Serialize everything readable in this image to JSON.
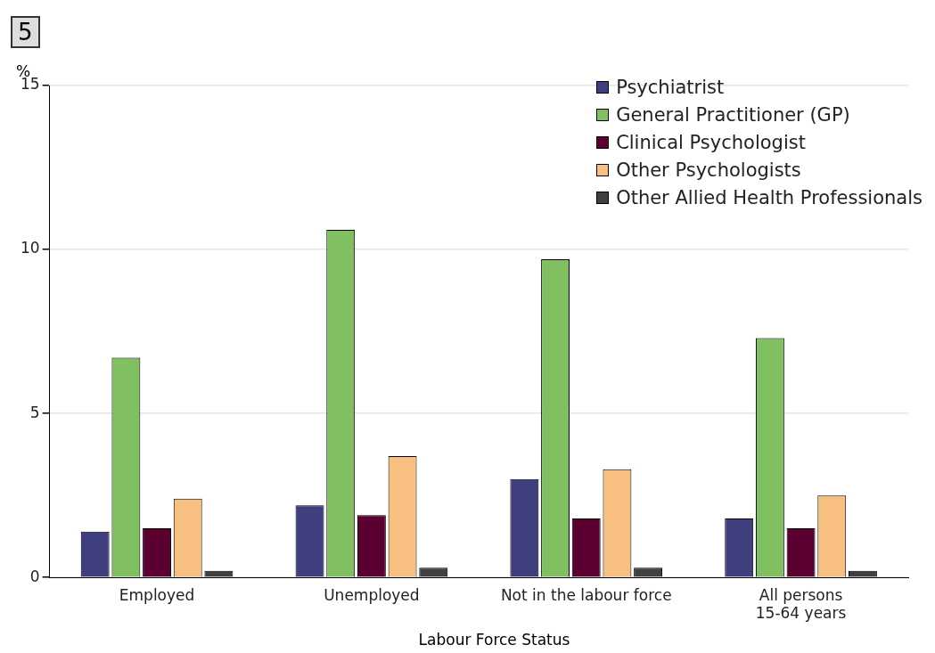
{
  "chart_data": {
    "type": "bar",
    "xlabel": "Labour Force Status",
    "ylabel": "%",
    "annotations": [
      "5"
    ],
    "categories": [
      "Employed",
      "Unemployed",
      "Not in the labour force",
      "All persons\n15-64 years"
    ],
    "series": [
      {
        "name": "Psychiatrist",
        "color": "#3f3f7f",
        "values": [
          1.4,
          2.2,
          3.0,
          1.8
        ]
      },
      {
        "name": "General Practitioner (GP)",
        "color": "#80c060",
        "values": [
          6.7,
          10.6,
          9.7,
          7.3
        ]
      },
      {
        "name": "Clinical Psychologist",
        "color": "#5c0032",
        "values": [
          1.5,
          1.9,
          1.8,
          1.5
        ]
      },
      {
        "name": "Other Psychologists",
        "color": "#f8c080",
        "values": [
          2.4,
          3.7,
          3.3,
          2.5
        ]
      },
      {
        "name": "Other Allied Health Professionals",
        "color": "#404040",
        "values": [
          0.2,
          0.3,
          0.3,
          0.2
        ]
      }
    ],
    "ylim": [
      0,
      15
    ],
    "yticks": [
      0,
      5,
      10,
      15
    ],
    "grid": "y",
    "legend": "top right"
  }
}
